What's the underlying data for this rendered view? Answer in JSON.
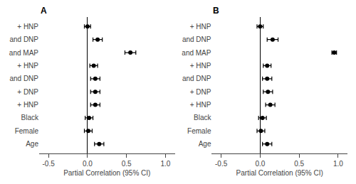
{
  "chart_data": [
    {
      "type": "scatter",
      "orientation": "horizontal",
      "title": "A",
      "categories": [
        "+ HNP",
        "and DNP",
        "and MAP",
        "+ HNP",
        "and DNP",
        "+ DNP",
        "+ HNP",
        "Black",
        "Female",
        "Age"
      ],
      "values": [
        0.0,
        0.13,
        0.55,
        0.08,
        0.1,
        0.1,
        0.1,
        0.02,
        0.01,
        0.15
      ],
      "ci_low": [
        -0.04,
        0.07,
        0.48,
        0.03,
        0.04,
        0.04,
        0.04,
        -0.03,
        -0.04,
        0.09
      ],
      "ci_high": [
        0.04,
        0.19,
        0.62,
        0.13,
        0.16,
        0.16,
        0.16,
        0.07,
        0.06,
        0.21
      ],
      "color": "black",
      "marker": "circle",
      "xlabel": "Partial Correlation (95% CI)",
      "xlim": [
        -0.62,
        1.12
      ],
      "xticks": [
        -0.5,
        {
          "value": 0.0,
          "label": "0.0"
        },
        0.5,
        {
          "value": 1.0,
          "label": "1.0"
        }
      ],
      "grid": false
    },
    {
      "type": "scatter",
      "orientation": "horizontal",
      "title": "B",
      "categories": [
        "+ HNP",
        "and DNP",
        "and MAP",
        "+ HNP",
        "and DNP",
        "+ DNP",
        "+ HNP",
        "Black",
        "Female",
        "Age"
      ],
      "values": [
        0.0,
        0.16,
        0.95,
        0.09,
        0.09,
        0.1,
        0.13,
        0.03,
        0.01,
        0.09
      ],
      "ci_low": [
        -0.04,
        0.09,
        0.92,
        0.04,
        0.03,
        0.04,
        0.07,
        -0.02,
        -0.04,
        0.03
      ],
      "ci_high": [
        0.04,
        0.23,
        0.98,
        0.14,
        0.15,
        0.16,
        0.19,
        0.08,
        0.06,
        0.15
      ],
      "color": "black",
      "marker": "circle",
      "xlabel": "Partial Correlation (95% CI)",
      "xlim": [
        -0.62,
        1.12
      ],
      "xticks": [
        -0.5,
        {
          "value": 0.0,
          "label": "0.0"
        },
        0.5,
        {
          "value": 1.0,
          "label": "1.0"
        }
      ],
      "grid": false
    }
  ]
}
